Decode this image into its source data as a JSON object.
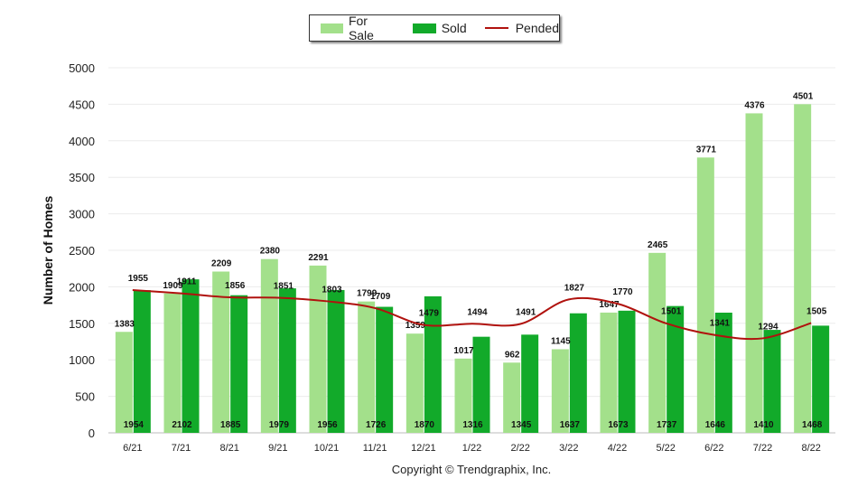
{
  "chart_data": {
    "type": "bar",
    "title": "",
    "xlabel": "",
    "ylabel": "Number of Homes",
    "ylim": [
      0,
      5000
    ],
    "yticks": [
      0,
      500,
      1000,
      1500,
      2000,
      2500,
      3000,
      3500,
      4000,
      4500,
      5000
    ],
    "grid": true,
    "legend_position": "top-center",
    "categories": [
      "6/21",
      "7/21",
      "8/21",
      "9/21",
      "10/21",
      "11/21",
      "12/21",
      "1/22",
      "2/22",
      "3/22",
      "4/22",
      "5/22",
      "6/22",
      "7/22",
      "8/22"
    ],
    "series": [
      {
        "name": "For Sale",
        "type": "bar",
        "color": "#a3e08b",
        "values": [
          1383,
          1909,
          2209,
          2380,
          2291,
          1799,
          1359,
          1017,
          962,
          1145,
          1647,
          2465,
          3771,
          4376,
          4501
        ]
      },
      {
        "name": "Sold",
        "type": "bar",
        "color": "#12aa2a",
        "values": [
          1954,
          2102,
          1885,
          1979,
          1956,
          1726,
          1870,
          1316,
          1345,
          1637,
          1673,
          1737,
          1646,
          1410,
          1468
        ]
      },
      {
        "name": "Pended",
        "type": "line",
        "color": "#b0120e",
        "values": [
          1955,
          1911,
          1856,
          1851,
          1803,
          1709,
          1479,
          1494,
          1491,
          1827,
          1770,
          1501,
          1341,
          1294,
          1505
        ]
      }
    ],
    "footer": "Copyright © Trendgraphix, Inc."
  }
}
